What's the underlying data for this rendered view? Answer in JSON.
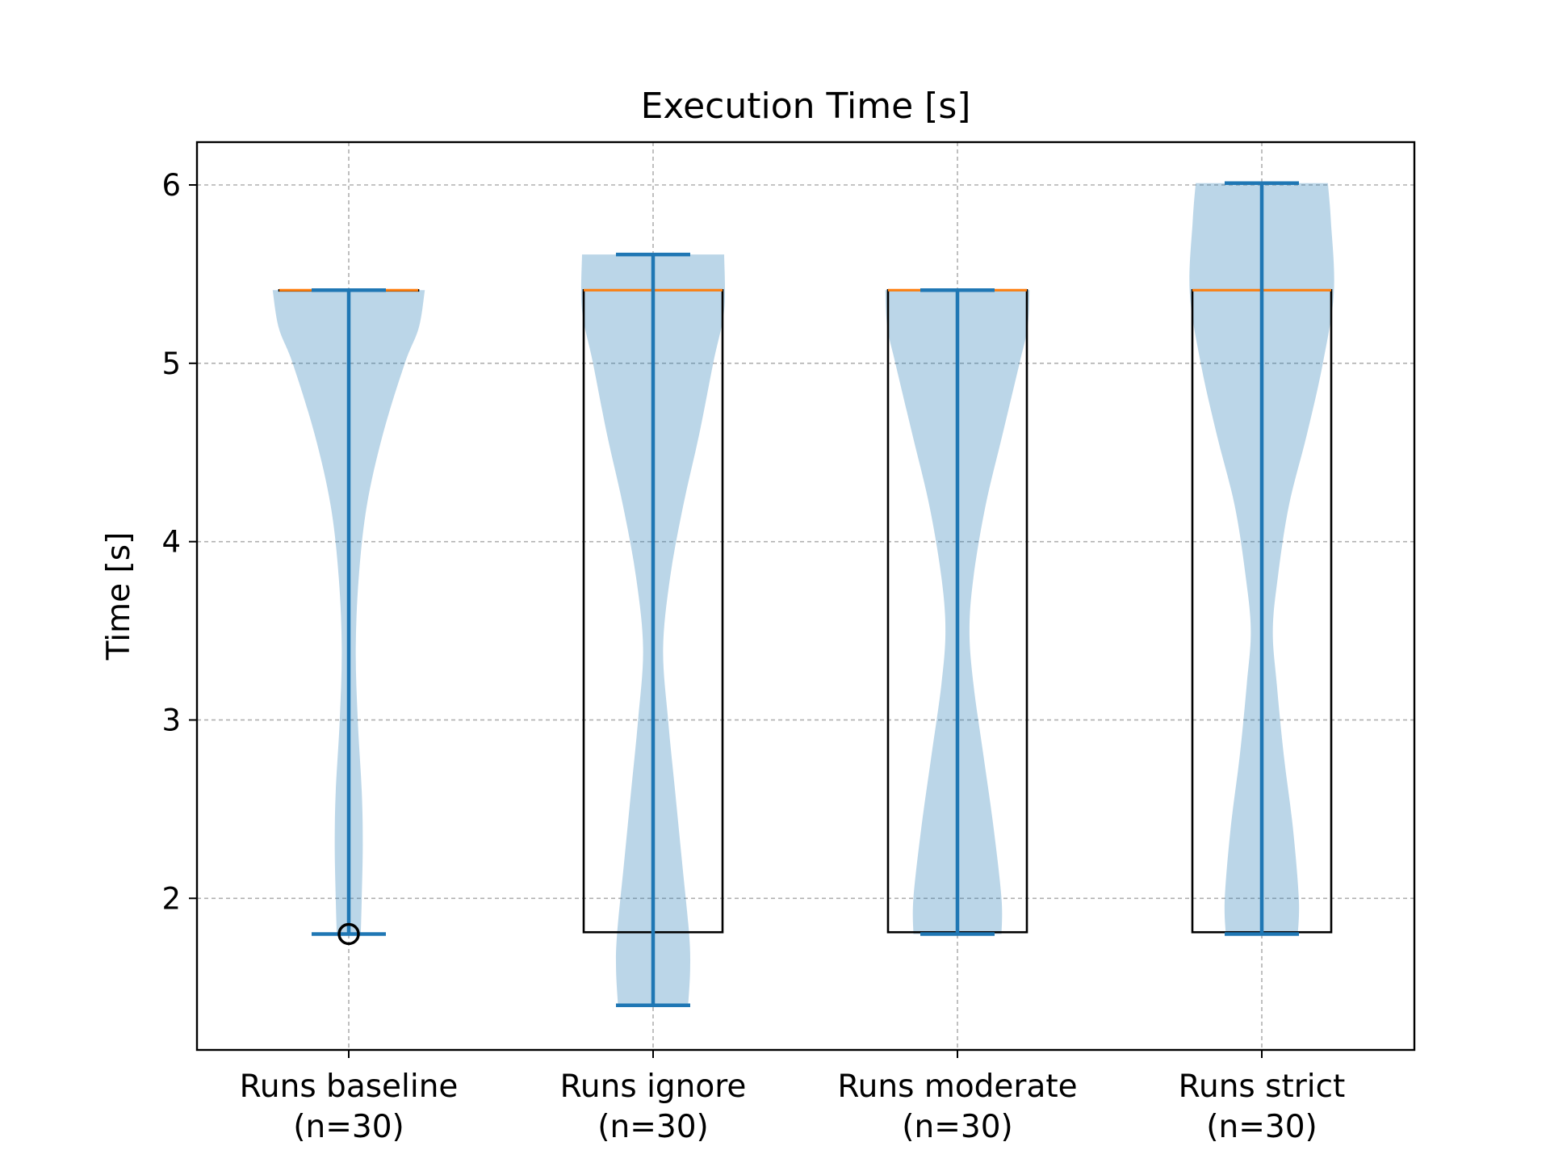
{
  "chart_data": {
    "type": "violin+box",
    "title": "Execution Time [s]",
    "xlabel": "",
    "ylabel": "Time [s]",
    "ylim": [
      1.15,
      6.24
    ],
    "yticks": [
      2,
      3,
      4,
      5,
      6
    ],
    "grid": true,
    "categories": [
      {
        "line1": "Runs baseline",
        "line2": "(n=30)"
      },
      {
        "line1": "Runs ignore",
        "line2": "(n=30)"
      },
      {
        "line1": "Runs moderate",
        "line2": "(n=30)"
      },
      {
        "line1": "Runs strict",
        "line2": "(n=30)"
      }
    ],
    "colors": {
      "violin_fill": "#1f77b4",
      "violin_line": "#1f77b4",
      "median": "#ff7f0e",
      "box": "#000000",
      "grid": "#b0b0b0"
    },
    "series": [
      {
        "min": 1.8,
        "max": 5.41,
        "box": {
          "q1": 5.41,
          "median": 5.41,
          "q3": 5.41,
          "whisker_low": 5.41,
          "whisker_high": 5.41
        },
        "outliers": [
          1.8
        ],
        "density": [
          [
            1.8,
            0.12
          ],
          [
            2.0,
            0.13
          ],
          [
            2.3,
            0.14
          ],
          [
            2.6,
            0.13
          ],
          [
            3.0,
            0.09
          ],
          [
            3.4,
            0.07
          ],
          [
            3.8,
            0.1
          ],
          [
            4.2,
            0.18
          ],
          [
            4.6,
            0.34
          ],
          [
            5.0,
            0.56
          ],
          [
            5.2,
            0.7
          ],
          [
            5.41,
            0.76
          ]
        ]
      },
      {
        "min": 1.4,
        "max": 5.61,
        "box": {
          "q1": 1.81,
          "median": 5.41,
          "q3": 5.41,
          "whisker_low": 1.81,
          "whisker_high": 5.41
        },
        "outliers": [],
        "density": [
          [
            1.4,
            0.35
          ],
          [
            1.6,
            0.37
          ],
          [
            1.8,
            0.36
          ],
          [
            2.2,
            0.29
          ],
          [
            2.6,
            0.22
          ],
          [
            3.0,
            0.15
          ],
          [
            3.4,
            0.1
          ],
          [
            3.8,
            0.17
          ],
          [
            4.2,
            0.3
          ],
          [
            4.6,
            0.46
          ],
          [
            5.0,
            0.6
          ],
          [
            5.3,
            0.71
          ],
          [
            5.61,
            0.71
          ]
        ]
      },
      {
        "min": 1.8,
        "max": 5.41,
        "box": {
          "q1": 1.81,
          "median": 5.41,
          "q3": 5.41,
          "whisker_low": 1.81,
          "whisker_high": 5.41
        },
        "outliers": [],
        "density": [
          [
            1.8,
            0.44
          ],
          [
            2.0,
            0.44
          ],
          [
            2.4,
            0.36
          ],
          [
            2.8,
            0.26
          ],
          [
            3.2,
            0.16
          ],
          [
            3.5,
            0.12
          ],
          [
            3.8,
            0.16
          ],
          [
            4.2,
            0.28
          ],
          [
            4.6,
            0.45
          ],
          [
            5.0,
            0.62
          ],
          [
            5.2,
            0.7
          ],
          [
            5.41,
            0.72
          ]
        ]
      },
      {
        "min": 1.8,
        "max": 6.01,
        "box": {
          "q1": 1.81,
          "median": 5.41,
          "q3": 5.41,
          "whisker_low": 1.81,
          "whisker_high": 5.41
        },
        "outliers": [],
        "density": [
          [
            1.8,
            0.36
          ],
          [
            2.0,
            0.37
          ],
          [
            2.4,
            0.31
          ],
          [
            2.8,
            0.22
          ],
          [
            3.2,
            0.15
          ],
          [
            3.5,
            0.11
          ],
          [
            3.8,
            0.16
          ],
          [
            4.2,
            0.27
          ],
          [
            4.6,
            0.45
          ],
          [
            5.0,
            0.61
          ],
          [
            5.4,
            0.72
          ],
          [
            5.8,
            0.69
          ],
          [
            6.01,
            0.66
          ]
        ]
      }
    ]
  }
}
